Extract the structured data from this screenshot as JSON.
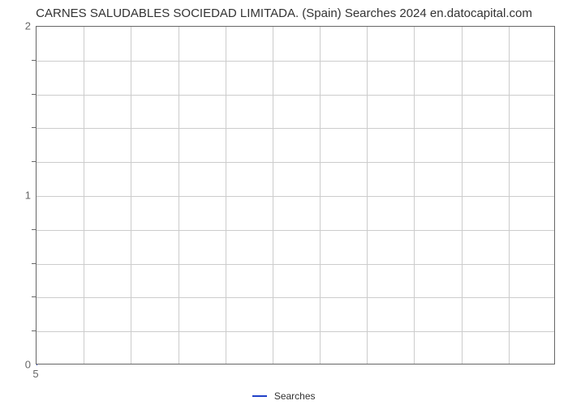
{
  "chart": {
    "type": "line",
    "title": "CARNES SALUDABLES SOCIEDAD LIMITADA. (Spain) Searches 2024 en.datocapital.com",
    "title_fontsize": 15,
    "title_color": "#333333",
    "background_color": "#ffffff",
    "plot_border_color": "#666666",
    "grid_color": "#cccccc",
    "y_axis": {
      "min": 0,
      "max": 2,
      "major_ticks": [
        0,
        1,
        2
      ],
      "minor_tick_count": 4,
      "label_color": "#666666",
      "label_fontsize": 13
    },
    "x_axis": {
      "min": 5,
      "max": 5,
      "ticks": [
        5
      ],
      "vertical_gridlines": 11,
      "label_color": "#666666",
      "label_fontsize": 13
    },
    "series": {
      "name": "Searches",
      "color": "#2040c8",
      "line_width": 2,
      "data_x": [
        5
      ],
      "data_y": [
        0
      ]
    },
    "legend": {
      "label": "Searches",
      "position": "bottom-center",
      "fontsize": 12,
      "color": "#333333"
    }
  }
}
